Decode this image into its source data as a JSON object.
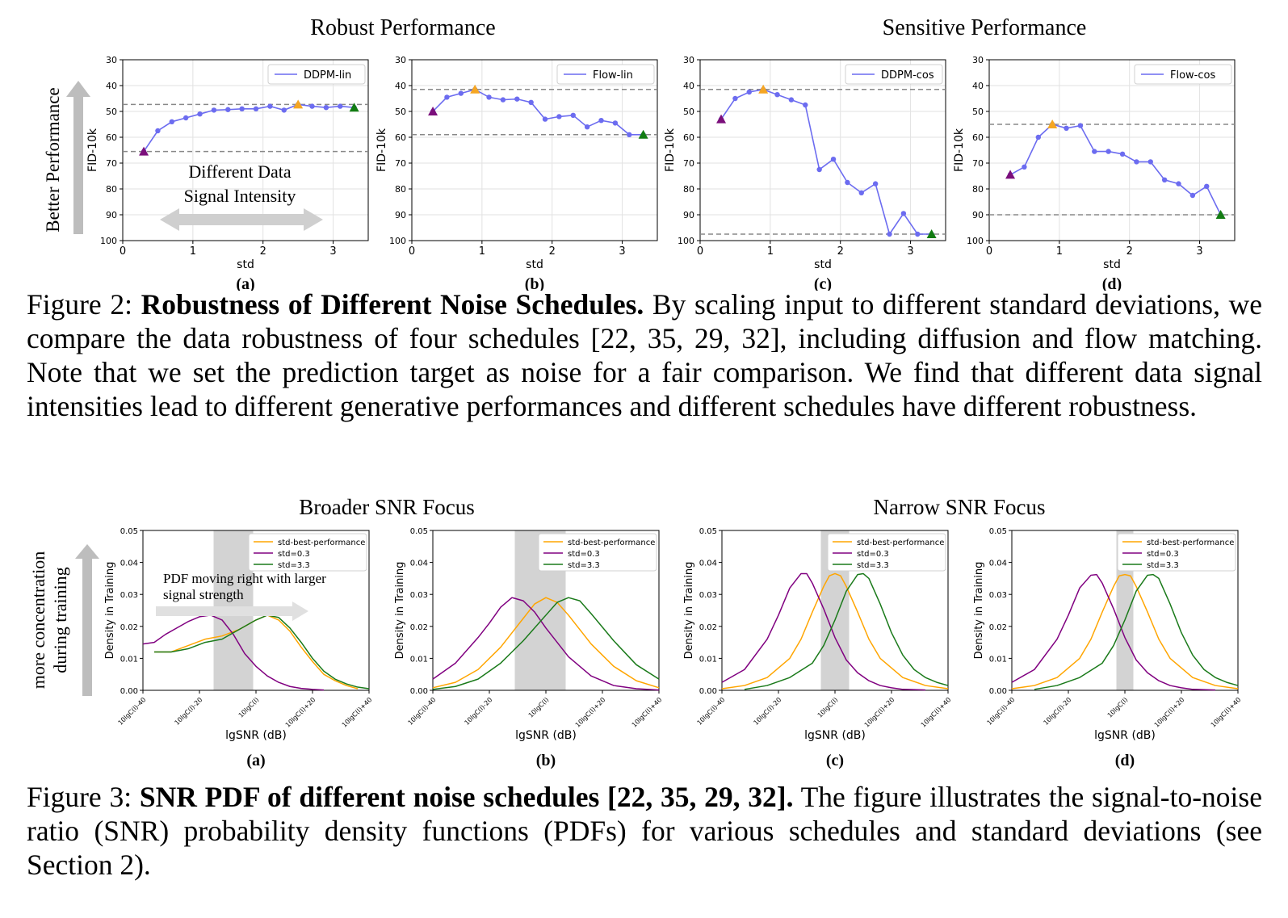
{
  "figure2": {
    "group_titles": [
      "Robust Performance",
      "Sensitive Performance"
    ],
    "side_arrow_label": "Better Performance",
    "annotation_lines": [
      "Different Data",
      "Signal Intensity"
    ],
    "caption": {
      "label": "Figure 2: ",
      "bold": "Robustness of Different Noise Schedules.",
      "text": " By scaling input to different standard deviations, we compare the data robustness of four schedules [22, 35, 29, 32], including diffusion and flow matching. Note that we set the prediction target as noise for a fair comparison. We find that different data signal intensities lead to different generative performances and different schedules have different robustness."
    }
  },
  "figure3": {
    "group_titles": [
      "Broader SNR Focus",
      "Narrow SNR Focus"
    ],
    "side_arrow_label_lines": [
      "more concentration",
      "during training"
    ],
    "annotation_lines": [
      "PDF moving right with larger",
      "signal strength"
    ],
    "caption": {
      "label": "Figure 3: ",
      "bold": "SNR PDF of different noise schedules [22, 35, 29, 32].",
      "text": " The figure illustrates the signal-to-noise ratio (SNR) probability density functions (PDFs) for various schedules and standard deviations (see Section 2)."
    }
  },
  "chart_data": [
    {
      "id": "fig2a",
      "type": "line",
      "panel_label": "(a)",
      "xlabel": "std",
      "ylabel": "FID-10k",
      "xlim": [
        0,
        3.5
      ],
      "ylim": [
        100,
        30
      ],
      "y_inverted": true,
      "xticks": [
        0,
        1,
        2,
        3
      ],
      "yticks": [
        30,
        40,
        50,
        60,
        70,
        80,
        90,
        100
      ],
      "grid": true,
      "legend_position": "top-right",
      "series": [
        {
          "name": "DDPM-lin",
          "color": "#6c6cf0",
          "x": [
            0.3,
            0.5,
            0.7,
            0.9,
            1.1,
            1.3,
            1.5,
            1.7,
            1.9,
            2.1,
            2.3,
            2.5,
            2.7,
            2.9,
            3.1,
            3.3
          ],
          "y": [
            65.5,
            57.5,
            54,
            52.5,
            51,
            49.5,
            49.3,
            49,
            49,
            48,
            49.5,
            47.3,
            48,
            48.5,
            48,
            48.5
          ]
        }
      ],
      "hlines": [
        47.3,
        65.5
      ],
      "markers": [
        {
          "x": 0.3,
          "y": 65.5,
          "color": "#7b0f7b"
        },
        {
          "x": 2.5,
          "y": 47.3,
          "color": "#f5a623"
        },
        {
          "x": 3.3,
          "y": 48.5,
          "color": "#127c12"
        }
      ]
    },
    {
      "id": "fig2b",
      "type": "line",
      "panel_label": "(b)",
      "xlabel": "std",
      "ylabel": "FID-10k",
      "xlim": [
        0,
        3.5
      ],
      "ylim": [
        100,
        30
      ],
      "y_inverted": true,
      "xticks": [
        0,
        1,
        2,
        3
      ],
      "yticks": [
        30,
        40,
        50,
        60,
        70,
        80,
        90,
        100
      ],
      "grid": true,
      "legend_position": "top-right",
      "series": [
        {
          "name": "Flow-lin",
          "color": "#6c6cf0",
          "x": [
            0.3,
            0.5,
            0.7,
            0.9,
            1.1,
            1.3,
            1.5,
            1.7,
            1.9,
            2.1,
            2.3,
            2.5,
            2.7,
            2.9,
            3.1,
            3.3
          ],
          "y": [
            50,
            44.5,
            43,
            41.5,
            44.5,
            45.5,
            45.2,
            46.5,
            53,
            52,
            51.5,
            56,
            53.5,
            54.5,
            59,
            59
          ]
        }
      ],
      "hlines": [
        41.5,
        59
      ],
      "markers": [
        {
          "x": 0.3,
          "y": 50,
          "color": "#7b0f7b"
        },
        {
          "x": 0.9,
          "y": 41.5,
          "color": "#f5a623"
        },
        {
          "x": 3.3,
          "y": 59,
          "color": "#127c12"
        }
      ]
    },
    {
      "id": "fig2c",
      "type": "line",
      "panel_label": "(c)",
      "xlabel": "std",
      "ylabel": "FID-10k",
      "xlim": [
        0,
        3.5
      ],
      "ylim": [
        100,
        30
      ],
      "y_inverted": true,
      "xticks": [
        0,
        1,
        2,
        3
      ],
      "yticks": [
        30,
        40,
        50,
        60,
        70,
        80,
        90,
        100
      ],
      "grid": true,
      "legend_position": "top-right",
      "series": [
        {
          "name": "DDPM-cos",
          "color": "#6c6cf0",
          "x": [
            0.3,
            0.5,
            0.7,
            0.9,
            1.1,
            1.3,
            1.5,
            1.7,
            1.9,
            2.1,
            2.3,
            2.5,
            2.7,
            2.9,
            3.1,
            3.3
          ],
          "y": [
            53,
            45,
            42.5,
            41.5,
            43.5,
            45.5,
            47.5,
            72.5,
            68.5,
            77.5,
            81.5,
            78,
            97.5,
            89.5,
            97.5,
            97.5
          ]
        }
      ],
      "hlines": [
        41.5,
        97.5
      ],
      "markers": [
        {
          "x": 0.3,
          "y": 53,
          "color": "#7b0f7b"
        },
        {
          "x": 0.9,
          "y": 41.5,
          "color": "#f5a623"
        },
        {
          "x": 3.3,
          "y": 97.5,
          "color": "#127c12"
        }
      ]
    },
    {
      "id": "fig2d",
      "type": "line",
      "panel_label": "(d)",
      "xlabel": "std",
      "ylabel": "FID-10k",
      "xlim": [
        0,
        3.5
      ],
      "ylim": [
        100,
        30
      ],
      "y_inverted": true,
      "xticks": [
        0,
        1,
        2,
        3
      ],
      "yticks": [
        30,
        40,
        50,
        60,
        70,
        80,
        90,
        100
      ],
      "grid": true,
      "legend_position": "top-right",
      "series": [
        {
          "name": "Flow-cos",
          "color": "#6c6cf0",
          "x": [
            0.3,
            0.5,
            0.7,
            0.9,
            1.1,
            1.3,
            1.5,
            1.7,
            1.9,
            2.1,
            2.3,
            2.5,
            2.7,
            2.9,
            3.1,
            3.3
          ],
          "y": [
            74.5,
            71.5,
            60,
            55,
            56.5,
            55.5,
            65.5,
            65.5,
            66.5,
            69.5,
            69.5,
            76.5,
            78,
            82.5,
            79,
            90
          ]
        }
      ],
      "hlines": [
        55,
        90
      ],
      "markers": [
        {
          "x": 0.3,
          "y": 74.5,
          "color": "#7b0f7b"
        },
        {
          "x": 0.9,
          "y": 55,
          "color": "#f5a623"
        },
        {
          "x": 3.3,
          "y": 90,
          "color": "#127c12"
        }
      ]
    },
    {
      "id": "fig3a",
      "type": "line",
      "panel_label": "(a)",
      "xlabel": "lgSNR (dB)",
      "ylabel": "Density in Training",
      "xlim": [
        -40,
        40
      ],
      "ylim": [
        0,
        0.05
      ],
      "xtick_values": [
        -40,
        -20,
        0,
        20,
        40
      ],
      "xtick_labels": [
        "10lgC(l)-40",
        "10lgC(l)-20",
        "10lgC(l)",
        "10lgC(l)+20",
        "10lgC(l)+40"
      ],
      "ytick_labels": [
        "0.00",
        "0.01",
        "0.02",
        "0.03",
        "0.04",
        "0.05"
      ],
      "legend_position": "top-right",
      "shaded_band": [
        -15,
        -1
      ],
      "series": [
        {
          "name": "std-best-performance",
          "color": "#ffa500",
          "x": [
            -36,
            -30,
            -24,
            -18,
            -12,
            -6,
            0,
            4,
            8,
            12,
            16,
            20,
            24,
            28,
            32,
            36
          ],
          "y": [
            0.012,
            0.012,
            0.014,
            0.016,
            0.017,
            0.019,
            0.022,
            0.0235,
            0.022,
            0.0185,
            0.0135,
            0.009,
            0.005,
            0.003,
            0.0015,
            0.0005
          ]
        },
        {
          "name": "std=0.3",
          "color": "#800080",
          "x": [
            -40,
            -36,
            -32,
            -28,
            -24,
            -20,
            -16,
            -12,
            -8,
            -4,
            0,
            4,
            8,
            12,
            16,
            20,
            24
          ],
          "y": [
            0.0145,
            0.015,
            0.0175,
            0.0195,
            0.0215,
            0.023,
            0.0235,
            0.022,
            0.0175,
            0.0115,
            0.0075,
            0.0045,
            0.0025,
            0.0012,
            0.0006,
            0.0003,
            0.0001
          ]
        },
        {
          "name": "std=3.3",
          "color": "#1a7a1a",
          "x": [
            -36,
            -30,
            -24,
            -18,
            -12,
            -6,
            0,
            4,
            8,
            12,
            16,
            20,
            24,
            28,
            32,
            36,
            40
          ],
          "y": [
            0.012,
            0.012,
            0.013,
            0.015,
            0.016,
            0.019,
            0.022,
            0.0235,
            0.0228,
            0.0195,
            0.015,
            0.01,
            0.006,
            0.0035,
            0.002,
            0.001,
            0.0005
          ]
        }
      ]
    },
    {
      "id": "fig3b",
      "type": "line",
      "panel_label": "(b)",
      "xlabel": "lgSNR (dB)",
      "ylabel": "Density in Training",
      "xlim": [
        -40,
        40
      ],
      "ylim": [
        0,
        0.05
      ],
      "xtick_values": [
        -40,
        -20,
        0,
        20,
        40
      ],
      "xtick_labels": [
        "10lgC(l)-40",
        "10lgC(l)-20",
        "10lgC(l)",
        "10lgC(l)+20",
        "10lgC(l)+40"
      ],
      "ytick_labels": [
        "0.00",
        "0.01",
        "0.02",
        "0.03",
        "0.04",
        "0.05"
      ],
      "legend_position": "top-right",
      "shaded_band": [
        -11,
        7
      ],
      "series": [
        {
          "name": "std-best-performance",
          "color": "#ffa500",
          "x": [
            -40,
            -32,
            -24,
            -16,
            -8,
            -4,
            0,
            4,
            8,
            16,
            24,
            32,
            40
          ],
          "y": [
            0.0008,
            0.0025,
            0.0065,
            0.0135,
            0.0225,
            0.027,
            0.029,
            0.0275,
            0.0235,
            0.0145,
            0.0075,
            0.003,
            0.0008
          ]
        },
        {
          "name": "std=0.3",
          "color": "#800080",
          "x": [
            -40,
            -32,
            -24,
            -20,
            -16,
            -12,
            -8,
            -4,
            0,
            8,
            16,
            24,
            32,
            40
          ],
          "y": [
            0.0035,
            0.0085,
            0.0165,
            0.021,
            0.026,
            0.029,
            0.028,
            0.0245,
            0.0195,
            0.0105,
            0.0045,
            0.0015,
            0.0005,
            0.0001
          ]
        },
        {
          "name": "std=3.3",
          "color": "#1a7a1a",
          "x": [
            -40,
            -32,
            -24,
            -16,
            -8,
            0,
            4,
            8,
            12,
            16,
            24,
            32,
            40
          ],
          "y": [
            0.0003,
            0.0012,
            0.0035,
            0.0085,
            0.0155,
            0.0235,
            0.0275,
            0.029,
            0.028,
            0.024,
            0.0155,
            0.008,
            0.0035
          ]
        }
      ]
    },
    {
      "id": "fig3c",
      "type": "line",
      "panel_label": "(c)",
      "xlabel": "lgSNR (dB)",
      "ylabel": "Density in Training",
      "xlim": [
        -40,
        40
      ],
      "ylim": [
        0,
        0.05
      ],
      "xtick_values": [
        -40,
        -20,
        0,
        20,
        40
      ],
      "xtick_labels": [
        "10lgC(l)-40",
        "10lgC(l)-20",
        "10lgC(l)",
        "10lgC(l)+20",
        "10lgC(l)+40"
      ],
      "ytick_labels": [
        "0.00",
        "0.01",
        "0.02",
        "0.03",
        "0.04",
        "0.05"
      ],
      "legend_position": "top-right",
      "shaded_band": [
        -5,
        5
      ],
      "series": [
        {
          "name": "std-best-performance",
          "color": "#ffa500",
          "x": [
            -40,
            -32,
            -24,
            -16,
            -12,
            -8,
            -4,
            -2,
            0,
            2,
            4,
            8,
            12,
            16,
            24,
            32,
            40
          ],
          "y": [
            0.0005,
            0.0015,
            0.004,
            0.01,
            0.016,
            0.0245,
            0.0325,
            0.0358,
            0.0365,
            0.0358,
            0.0325,
            0.0245,
            0.016,
            0.01,
            0.004,
            0.0015,
            0.0005
          ]
        },
        {
          "name": "std=0.3",
          "color": "#800080",
          "x": [
            -40,
            -32,
            -24,
            -20,
            -16,
            -12,
            -10,
            -8,
            -4,
            0,
            4,
            8,
            12,
            16,
            20,
            24,
            32
          ],
          "y": [
            0.0025,
            0.0065,
            0.016,
            0.0235,
            0.032,
            0.0365,
            0.0365,
            0.0335,
            0.0255,
            0.0165,
            0.0095,
            0.0055,
            0.003,
            0.0015,
            0.0008,
            0.0003,
            0.0001
          ]
        },
        {
          "name": "std=3.3",
          "color": "#1a7a1a",
          "x": [
            -32,
            -24,
            -16,
            -8,
            -4,
            0,
            4,
            8,
            10,
            12,
            16,
            20,
            24,
            28,
            32,
            36,
            40
          ],
          "y": [
            0.0003,
            0.0015,
            0.004,
            0.0085,
            0.014,
            0.022,
            0.031,
            0.0362,
            0.0365,
            0.035,
            0.027,
            0.018,
            0.011,
            0.0065,
            0.004,
            0.0025,
            0.0015
          ]
        }
      ]
    },
    {
      "id": "fig3d",
      "type": "line",
      "panel_label": "(d)",
      "xlabel": "lgSNR (dB)",
      "ylabel": "Density in Training",
      "xlim": [
        -40,
        40
      ],
      "ylim": [
        0,
        0.05
      ],
      "xtick_values": [
        -40,
        -20,
        0,
        20,
        40
      ],
      "xtick_labels": [
        "10lgC(l)-40",
        "10lgC(l)-20",
        "10lgC(l)",
        "10lgC(l)+20",
        "10lgC(l)+40"
      ],
      "ytick_labels": [
        "0.00",
        "0.01",
        "0.02",
        "0.03",
        "0.04",
        "0.05"
      ],
      "legend_position": "top-right",
      "shaded_band": [
        -3,
        3
      ],
      "series": [
        {
          "name": "std-best-performance",
          "color": "#ffa500",
          "x": [
            -40,
            -32,
            -24,
            -16,
            -12,
            -8,
            -4,
            -2,
            0,
            2,
            4,
            8,
            12,
            16,
            24,
            32,
            40
          ],
          "y": [
            0.0005,
            0.0015,
            0.004,
            0.01,
            0.016,
            0.0245,
            0.0325,
            0.0358,
            0.0362,
            0.0358,
            0.0325,
            0.0245,
            0.016,
            0.01,
            0.004,
            0.0015,
            0.0005
          ]
        },
        {
          "name": "std=0.3",
          "color": "#800080",
          "x": [
            -40,
            -32,
            -24,
            -20,
            -16,
            -12,
            -10,
            -8,
            -4,
            0,
            4,
            8,
            12,
            16,
            20,
            24,
            32
          ],
          "y": [
            0.0025,
            0.0065,
            0.016,
            0.0235,
            0.032,
            0.036,
            0.0362,
            0.0335,
            0.0255,
            0.0165,
            0.0095,
            0.0055,
            0.003,
            0.0015,
            0.0008,
            0.0003,
            0.0001
          ]
        },
        {
          "name": "std=3.3",
          "color": "#1a7a1a",
          "x": [
            -32,
            -24,
            -16,
            -8,
            -4,
            0,
            4,
            8,
            10,
            12,
            16,
            20,
            24,
            28,
            32,
            36,
            40
          ],
          "y": [
            0.0003,
            0.0015,
            0.004,
            0.0085,
            0.014,
            0.022,
            0.031,
            0.036,
            0.0362,
            0.035,
            0.027,
            0.018,
            0.011,
            0.0065,
            0.004,
            0.0025,
            0.0015
          ]
        }
      ]
    }
  ]
}
